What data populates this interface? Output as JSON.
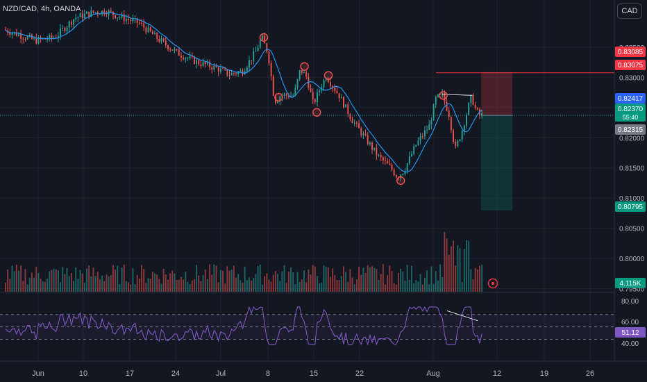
{
  "header": {
    "symbol": "NZD/CAD, 4h, OANDA",
    "currency_button": "CAD"
  },
  "colors": {
    "background": "#131722",
    "up": "#26a69a",
    "down": "#ef5350",
    "ma": "#2196f3",
    "rsi": "#7e57c2",
    "grid": "#1e222d",
    "text": "#b2b5be",
    "red_line": "#f23645"
  },
  "chart_data": {
    "type": "candlestick",
    "price_axis": {
      "ticks": [
        "0.83500",
        "0.83000",
        "0.82500",
        "0.82000",
        "0.81500",
        "0.81000",
        "0.80500",
        "0.80000",
        "0.79500"
      ]
    },
    "x_axis": {
      "ticks": [
        "Jun",
        "10",
        "17",
        "24",
        "Jul",
        "8",
        "15",
        "22",
        "Aug",
        "12",
        "19",
        "26"
      ]
    },
    "price_path": [
      {
        "t": 0,
        "p": 0.8379
      },
      {
        "t": 2,
        "p": 0.8372
      },
      {
        "t": 5,
        "p": 0.8361
      },
      {
        "t": 8,
        "p": 0.8366
      },
      {
        "t": 11,
        "p": 0.8398
      },
      {
        "t": 14,
        "p": 0.8408
      },
      {
        "t": 16,
        "p": 0.8409
      },
      {
        "t": 18,
        "p": 0.84
      },
      {
        "t": 21,
        "p": 0.839
      },
      {
        "t": 24,
        "p": 0.8363
      },
      {
        "t": 27,
        "p": 0.834
      },
      {
        "t": 30,
        "p": 0.8325
      },
      {
        "t": 33,
        "p": 0.8315
      },
      {
        "t": 35,
        "p": 0.8305
      },
      {
        "t": 37,
        "p": 0.831
      },
      {
        "t": 39,
        "p": 0.834
      },
      {
        "t": 40,
        "p": 0.8366
      },
      {
        "t": 41,
        "p": 0.834
      },
      {
        "t": 42,
        "p": 0.826
      },
      {
        "t": 43,
        "p": 0.827
      },
      {
        "t": 45,
        "p": 0.827
      },
      {
        "t": 46,
        "p": 0.8313
      },
      {
        "t": 47,
        "p": 0.83
      },
      {
        "t": 48,
        "p": 0.8255
      },
      {
        "t": 49,
        "p": 0.828
      },
      {
        "t": 50,
        "p": 0.8302
      },
      {
        "t": 52,
        "p": 0.827
      },
      {
        "t": 54,
        "p": 0.823
      },
      {
        "t": 56,
        "p": 0.82
      },
      {
        "t": 58,
        "p": 0.817
      },
      {
        "t": 60,
        "p": 0.815
      },
      {
        "t": 61,
        "p": 0.8135
      },
      {
        "t": 62,
        "p": 0.8145
      },
      {
        "t": 64,
        "p": 0.819
      },
      {
        "t": 66,
        "p": 0.822
      },
      {
        "t": 67,
        "p": 0.8265
      },
      {
        "t": 68,
        "p": 0.827
      },
      {
        "t": 69,
        "p": 0.824
      },
      {
        "t": 70,
        "p": 0.818
      },
      {
        "t": 71,
        "p": 0.821
      },
      {
        "t": 72,
        "p": 0.825
      },
      {
        "t": 72.5,
        "p": 0.8268
      },
      {
        "t": 73.2,
        "p": 0.8245
      },
      {
        "t": 73.8,
        "p": 0.8237
      }
    ],
    "markers": [
      {
        "label": "swing-high-1",
        "t": 40,
        "p": 0.8366
      },
      {
        "label": "swing-low-1",
        "t": 42.3,
        "p": 0.8267
      },
      {
        "label": "swing-high-2",
        "t": 46.3,
        "p": 0.8318
      },
      {
        "label": "swing-high-3",
        "t": 50,
        "p": 0.8303
      },
      {
        "label": "swing-low-2",
        "t": 48.2,
        "p": 0.8242
      },
      {
        "label": "swing-low-3",
        "t": 61.2,
        "p": 0.8129
      },
      {
        "label": "swing-high-4",
        "t": 67.8,
        "p": 0.827
      }
    ],
    "position": {
      "entry": 0.8237,
      "stop": 0.83085,
      "target": 0.80795
    },
    "horizontal_line": 0.83075,
    "price_labels": [
      {
        "value": "0.83085",
        "color": "#f23645"
      },
      {
        "value": "0.83075",
        "color": "#f23645"
      },
      {
        "value": "0.82417",
        "color": "#2962ff"
      },
      {
        "value": "0.82370",
        "sub": "55:40",
        "color": "#089981"
      },
      {
        "value": "0.82315",
        "color": "#787b86"
      },
      {
        "value": "0.80795",
        "color": "#089981"
      }
    ],
    "volume": {
      "last_label": "4.115K"
    },
    "rsi": {
      "levels": [
        "80.00",
        "60.00",
        "40.00"
      ],
      "current": "51.12",
      "upper_band": 70,
      "lower_band": 30
    }
  }
}
